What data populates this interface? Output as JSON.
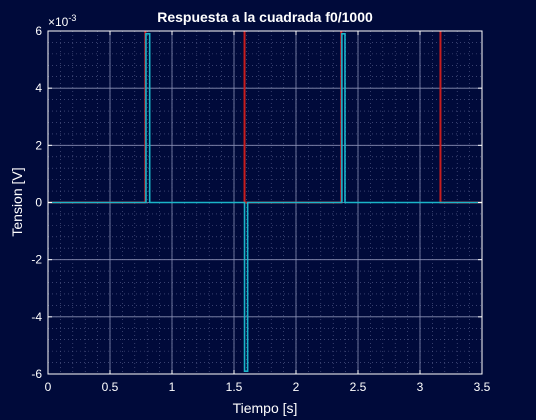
{
  "chart_data": {
    "type": "line",
    "title": "Respuesta a la cuadrada f0/1000",
    "xlabel": "Tiempo [s]",
    "ylabel": "Tension [V]",
    "y_exponent_label": "×10",
    "y_exponent_value": "-3",
    "xlim": [
      0,
      3.5
    ],
    "ylim": [
      -6,
      6
    ],
    "x_ticks": [
      0,
      0.5,
      1,
      1.5,
      2,
      2.5,
      3,
      3.5
    ],
    "x_tick_labels": [
      "0",
      "0.5",
      "1",
      "1.5",
      "2",
      "2.5",
      "3",
      "3.5"
    ],
    "y_ticks": [
      -6,
      -4,
      -2,
      0,
      2,
      4,
      6
    ],
    "y_tick_labels": [
      "-6",
      "-4",
      "-2",
      "0",
      "2",
      "4",
      "6"
    ],
    "grid": true,
    "minor_grid": true,
    "series": [
      {
        "color": "#c81e1e",
        "x": [
          0,
          0.785,
          0.785,
          1.585,
          1.585,
          2.365,
          2.365,
          3.165,
          3.165,
          3.5
        ],
        "y": [
          0,
          0,
          6.5,
          6.5,
          0,
          0,
          6.5,
          6.5,
          0,
          0
        ]
      },
      {
        "color": "#1ab5c9",
        "x": [
          0,
          0.79,
          0.79,
          0.82,
          0.82,
          1.585,
          1.585,
          1.61,
          1.61,
          2.37,
          2.37,
          2.395,
          2.395,
          3.5
        ],
        "y": [
          0,
          0,
          5.9,
          5.9,
          0,
          0,
          -5.9,
          -5.9,
          0,
          0,
          5.9,
          5.9,
          0,
          0
        ]
      }
    ]
  }
}
